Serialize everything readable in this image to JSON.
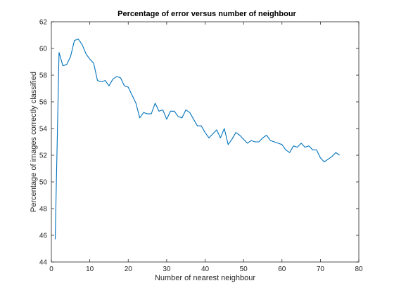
{
  "chart_data": {
    "type": "line",
    "title": "Percentage of error versus number of neighbour",
    "xlabel": "Number of nearest neighbour",
    "ylabel": "Percentage of images correctly classified",
    "xlim": [
      0,
      80
    ],
    "ylim": [
      44,
      62
    ],
    "xticks": [
      "0",
      "10",
      "20",
      "30",
      "40",
      "50",
      "60",
      "70",
      "80"
    ],
    "yticks": [
      "44",
      "46",
      "48",
      "50",
      "52",
      "54",
      "56",
      "58",
      "60",
      "62"
    ],
    "grid": false,
    "legend": "none",
    "series": [
      {
        "color": "#0072bd",
        "x": [
          1,
          2,
          3,
          4,
          5,
          6,
          7,
          8,
          9,
          10,
          11,
          12,
          13,
          14,
          15,
          16,
          17,
          18,
          19,
          20,
          21,
          22,
          23,
          24,
          25,
          26,
          27,
          28,
          29,
          30,
          31,
          32,
          33,
          34,
          35,
          36,
          37,
          38,
          39,
          40,
          41,
          42,
          43,
          44,
          45,
          46,
          47,
          48,
          49,
          50,
          51,
          52,
          53,
          54,
          55,
          56,
          57,
          58,
          59,
          60,
          61,
          62,
          63,
          64,
          65,
          66,
          67,
          68,
          69,
          70,
          71,
          72,
          73,
          74,
          75
        ],
        "y": [
          45.7,
          59.7,
          58.7,
          58.8,
          59.4,
          60.6,
          60.7,
          60.3,
          59.6,
          59.2,
          58.9,
          57.6,
          57.5,
          57.6,
          57.2,
          57.7,
          57.9,
          57.8,
          57.2,
          57.1,
          56.5,
          55.9,
          54.8,
          55.2,
          55.1,
          55.1,
          55.9,
          55.3,
          55.4,
          54.7,
          55.3,
          55.3,
          54.9,
          54.8,
          55.4,
          55.2,
          54.7,
          54.2,
          54.2,
          53.7,
          53.3,
          53.6,
          53.9,
          53.3,
          54.0,
          52.8,
          53.2,
          53.7,
          53.5,
          53.2,
          52.9,
          53.1,
          53.0,
          53.0,
          53.3,
          53.5,
          53.1,
          53.0,
          52.9,
          52.8,
          52.4,
          52.2,
          52.7,
          52.6,
          52.9,
          52.6,
          52.7,
          52.4,
          52.4,
          51.8,
          51.5,
          51.7,
          51.9,
          52.2,
          52.0
        ]
      }
    ]
  }
}
